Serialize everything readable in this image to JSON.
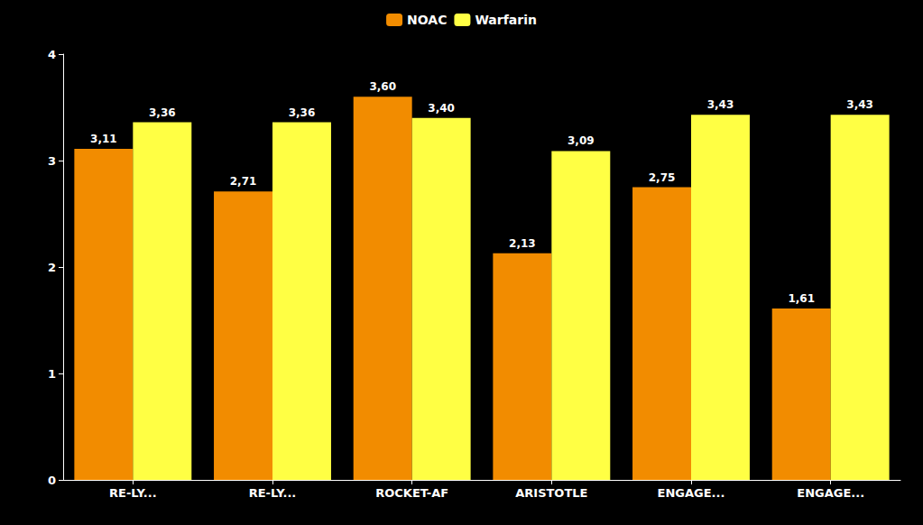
{
  "chart_data": {
    "type": "bar",
    "categories": [
      "RE-LY...",
      "RE-LY...",
      "ROCKET-AF",
      "ARISTOTLE",
      "ENGAGE...",
      "ENGAGE..."
    ],
    "series": [
      {
        "name": "NOAC",
        "color": "#F28C00",
        "values": [
          3.11,
          2.71,
          3.6,
          2.13,
          2.75,
          1.61
        ],
        "value_labels": [
          "3,11",
          "2,71",
          "3,60",
          "2,13",
          "2,75",
          "1,61"
        ]
      },
      {
        "name": "Warfarin",
        "color": "#FFFF44",
        "values": [
          3.36,
          3.36,
          3.4,
          3.09,
          3.43,
          3.43
        ],
        "value_labels": [
          "3,36",
          "3,36",
          "3,40",
          "3,09",
          "3,43",
          "3,43"
        ]
      }
    ],
    "ylim": [
      0,
      4
    ],
    "yticks": [
      0,
      1,
      2,
      3,
      4
    ],
    "grid": false,
    "legend": "top",
    "data_labels": true
  }
}
